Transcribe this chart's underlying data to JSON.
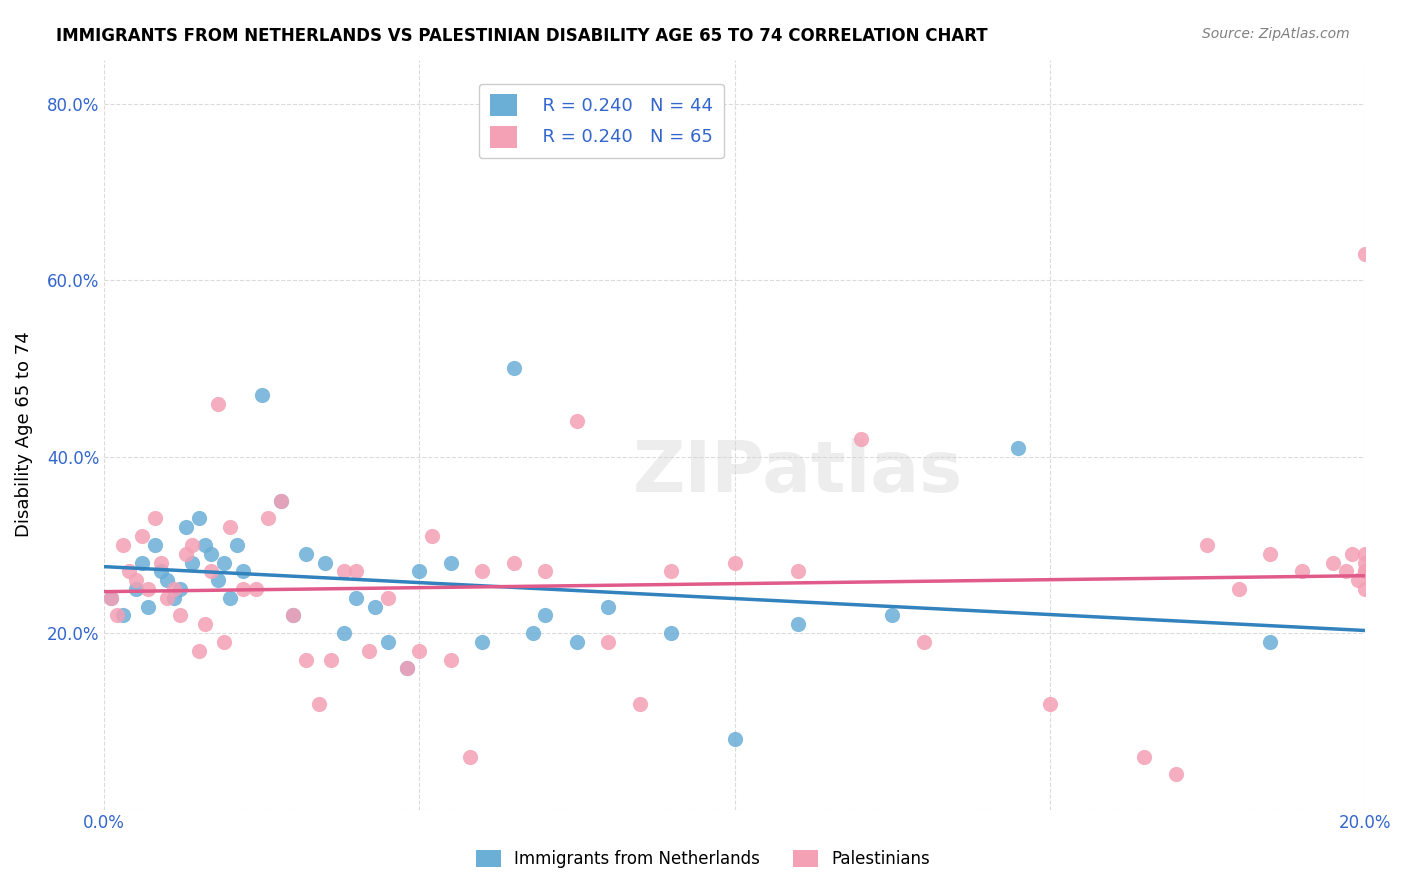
{
  "title": "IMMIGRANTS FROM NETHERLANDS VS PALESTINIAN DISABILITY AGE 65 TO 74 CORRELATION CHART",
  "source": "Source: ZipAtlas.com",
  "xlabel": "",
  "ylabel": "Disability Age 65 to 74",
  "xlim": [
    0.0,
    0.2
  ],
  "ylim": [
    0.0,
    0.85
  ],
  "xticks": [
    0.0,
    0.05,
    0.1,
    0.15,
    0.2
  ],
  "xtick_labels": [
    "0.0%",
    "",
    "",
    "",
    "20.0%"
  ],
  "yticks": [
    0.0,
    0.2,
    0.4,
    0.6,
    0.8
  ],
  "ytick_labels": [
    "",
    "20.0%",
    "40.0%",
    "60.0%",
    "80.0%"
  ],
  "legend_r1": "R = 0.240",
  "legend_n1": "N = 44",
  "legend_r2": "R = 0.240",
  "legend_n2": "N = 65",
  "legend_label1": "Immigrants from Netherlands",
  "legend_label2": "Palestinians",
  "color_blue": "#6baed6",
  "color_pink": "#f4a0b5",
  "line_color_blue": "#3182bd",
  "line_color_pink": "#e05a8a",
  "watermark": "ZIPatlas",
  "blue_x": [
    0.001,
    0.003,
    0.005,
    0.006,
    0.007,
    0.008,
    0.009,
    0.01,
    0.011,
    0.012,
    0.013,
    0.014,
    0.015,
    0.016,
    0.017,
    0.018,
    0.019,
    0.02,
    0.021,
    0.022,
    0.025,
    0.028,
    0.03,
    0.032,
    0.035,
    0.038,
    0.04,
    0.043,
    0.045,
    0.048,
    0.05,
    0.055,
    0.06,
    0.065,
    0.068,
    0.07,
    0.075,
    0.08,
    0.09,
    0.1,
    0.11,
    0.125,
    0.145,
    0.185
  ],
  "blue_y": [
    0.24,
    0.22,
    0.25,
    0.28,
    0.23,
    0.3,
    0.27,
    0.26,
    0.24,
    0.25,
    0.32,
    0.28,
    0.33,
    0.3,
    0.29,
    0.26,
    0.28,
    0.24,
    0.3,
    0.27,
    0.47,
    0.35,
    0.22,
    0.29,
    0.28,
    0.2,
    0.24,
    0.23,
    0.19,
    0.16,
    0.27,
    0.28,
    0.19,
    0.5,
    0.2,
    0.22,
    0.19,
    0.23,
    0.2,
    0.08,
    0.21,
    0.22,
    0.41,
    0.19
  ],
  "pink_x": [
    0.001,
    0.002,
    0.003,
    0.004,
    0.005,
    0.006,
    0.007,
    0.008,
    0.009,
    0.01,
    0.011,
    0.012,
    0.013,
    0.014,
    0.015,
    0.016,
    0.017,
    0.018,
    0.019,
    0.02,
    0.022,
    0.024,
    0.026,
    0.028,
    0.03,
    0.032,
    0.034,
    0.036,
    0.038,
    0.04,
    0.042,
    0.045,
    0.048,
    0.05,
    0.052,
    0.055,
    0.058,
    0.06,
    0.065,
    0.07,
    0.075,
    0.08,
    0.085,
    0.09,
    0.1,
    0.11,
    0.12,
    0.13,
    0.15,
    0.165,
    0.17,
    0.175,
    0.18,
    0.185,
    0.19,
    0.195,
    0.197,
    0.198,
    0.199,
    0.2,
    0.2,
    0.2,
    0.2,
    0.2,
    0.2
  ],
  "pink_y": [
    0.24,
    0.22,
    0.3,
    0.27,
    0.26,
    0.31,
    0.25,
    0.33,
    0.28,
    0.24,
    0.25,
    0.22,
    0.29,
    0.3,
    0.18,
    0.21,
    0.27,
    0.46,
    0.19,
    0.32,
    0.25,
    0.25,
    0.33,
    0.35,
    0.22,
    0.17,
    0.12,
    0.17,
    0.27,
    0.27,
    0.18,
    0.24,
    0.16,
    0.18,
    0.31,
    0.17,
    0.06,
    0.27,
    0.28,
    0.27,
    0.44,
    0.19,
    0.12,
    0.27,
    0.28,
    0.27,
    0.42,
    0.19,
    0.12,
    0.06,
    0.04,
    0.3,
    0.25,
    0.29,
    0.27,
    0.28,
    0.27,
    0.29,
    0.26,
    0.63,
    0.25,
    0.29,
    0.27,
    0.28,
    0.27
  ]
}
